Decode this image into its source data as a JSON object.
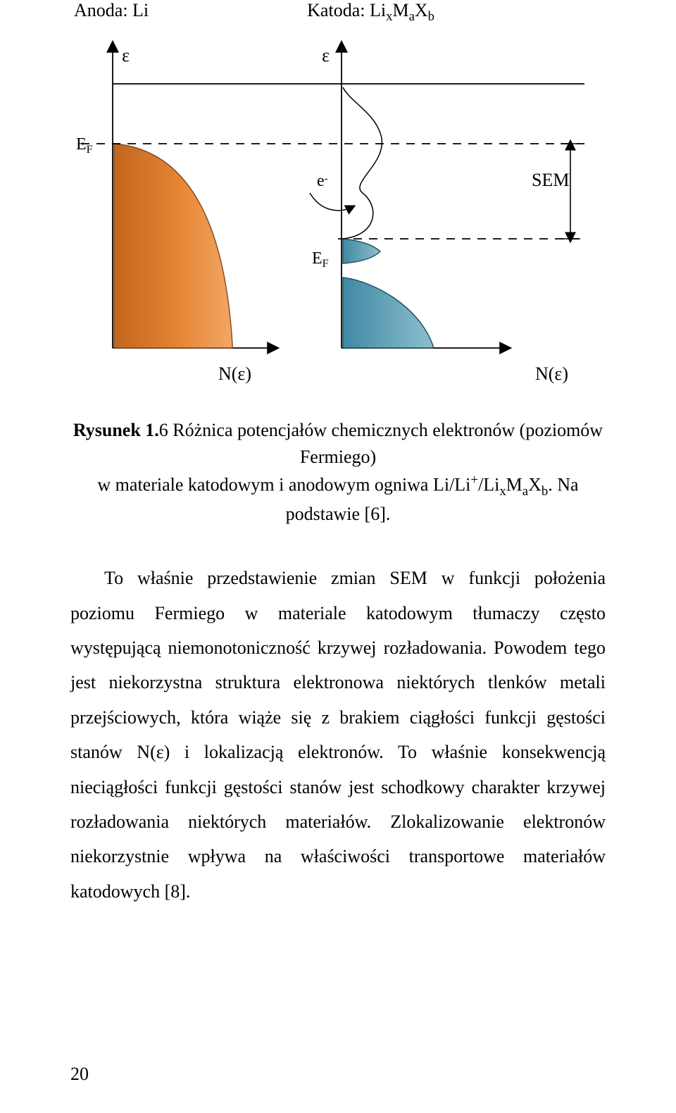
{
  "figure": {
    "anode_title_html": "Anoda: Li",
    "cathode_title_html": "Katoda: Li<sub>x</sub>M<sub>a</sub>X<sub>b</sub>",
    "epsilon_left": "ε",
    "epsilon_right": "ε",
    "ef_left_html": "E<sub>F</sub>",
    "ef_right_html": "E<sub>F</sub>",
    "electron_html": "e<sup>-</sup>",
    "sem_label": "SEM",
    "n_eps_left": "N(ε)",
    "n_eps_right": "N(ε)",
    "colors": {
      "anode_fill": "#e58534",
      "anode_stroke": "#7f4a1a",
      "cathode_fill_top": "#8cbecf",
      "cathode_fill_bottom": "#3f8aa3",
      "cathode_stroke": "#1f4d5c",
      "axis": "#000000",
      "text": "#000000",
      "background": "#ffffff"
    },
    "axis_stroke_width": 1.8,
    "dash": "12,10",
    "font_size_axis_label": 26,
    "font_size_ef": 24,
    "font_size_sem": 26,
    "arrow_marker_size": 10
  },
  "caption": {
    "line1_html": "<b>Rysunek 1.</b>6 Różnica potencjałów chemicznych elektronów (poziomów Fermiego)",
    "line2_html": "w materiale katodowym i anodowym ogniwa Li/Li<sup>+</sup>/Li<sub>x</sub>M<sub>a</sub>X<sub>b</sub>. Na podstawie [6]."
  },
  "paragraph_html": "To właśnie przedstawienie zmian SEM w funkcji  położenia poziomu Fermiego w materiale katodowym tłumaczy często występującą niemonotoniczność krzywej rozładowania. Powodem tego jest niekorzystna struktura elektronowa niektórych tlenków metali przejściowych, która wiąże się z brakiem ciągłości funkcji gęstości stanów N(ε) i lokalizacją elektronów. To właśnie konsekwencją nieciągłości funkcji gęstości stanów jest schodkowy charakter krzywej rozładowania niektórych materiałów. Zlokalizowanie elektronów niekorzystnie wpływa na właściwości transportowe materiałów katodowych [8].",
  "page_number": "20"
}
